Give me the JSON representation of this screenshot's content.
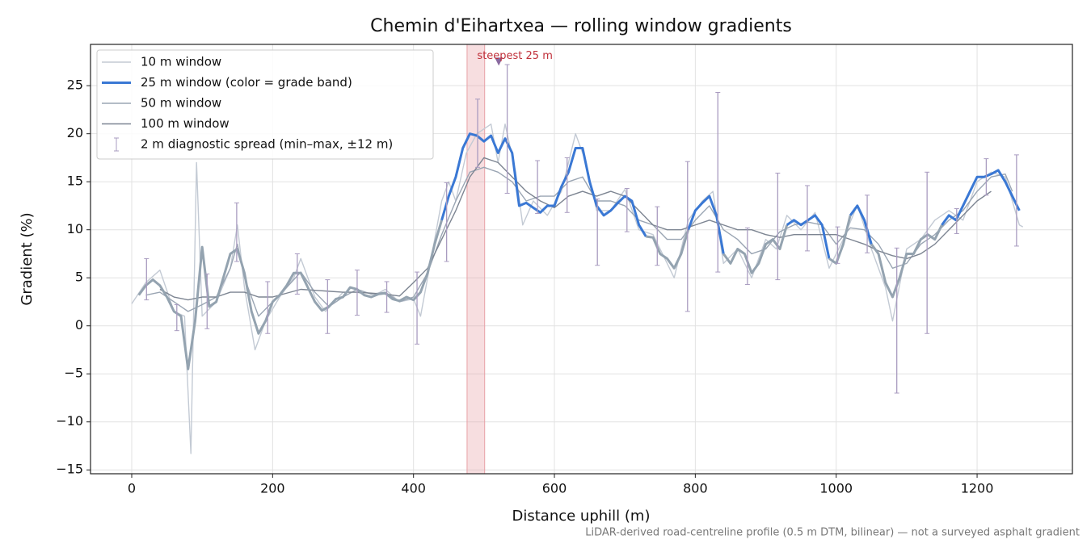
{
  "chart_data": {
    "type": "line",
    "title": "Chemin d'Eihartxea — rolling window gradients",
    "x_label": "Distance uphill (m)",
    "y_label": "Gradient (%)",
    "note": "LiDAR-derived road-centreline profile (0.5 m DTM, bilinear) — not a surveyed asphalt gradient",
    "xlim": [
      -58.5,
      1335.3
    ],
    "ylim": [
      -15.4,
      29.3
    ],
    "xticks": [
      0,
      200,
      400,
      600,
      800,
      1000,
      1200
    ],
    "yticks": [
      {
        "value": -15,
        "label": "−15"
      },
      {
        "value": -10,
        "label": "−10"
      },
      {
        "value": -5,
        "label": "−5"
      },
      0,
      5,
      10,
      15,
      20,
      25
    ],
    "grid": true,
    "legend": "upper left",
    "highlight": {
      "x": [
        476,
        501
      ],
      "color": "#e8a0a6"
    },
    "annotation": {
      "text": "steepest 25 m",
      "x": 521,
      "y": 27.5,
      "color": "#c0303a"
    },
    "series": [
      {
        "name": "10 m window",
        "color": "#c3cad4",
        "x": [
          0,
          20,
          40,
          60,
          75,
          84,
          92,
          100,
          120,
          140,
          150,
          160,
          175,
          190,
          210,
          230,
          240,
          260,
          275,
          300,
          320,
          340,
          360,
          380,
          400,
          410,
          420,
          440,
          450,
          460,
          475,
          490,
          510,
          520,
          530,
          545,
          555,
          570,
          590,
          610,
          630,
          645,
          660,
          680,
          700,
          720,
          740,
          760,
          770,
          790,
          810,
          825,
          840,
          860,
          880,
          900,
          915,
          930,
          950,
          970,
          990,
          1010,
          1030,
          1050,
          1070,
          1080,
          1100,
          1120,
          1140,
          1160,
          1180,
          1200,
          1220,
          1240,
          1260,
          1265
        ],
        "values": [
          2.3,
          4.5,
          5.8,
          1.5,
          1.0,
          -13.3,
          17,
          1.0,
          2.5,
          6,
          10.5,
          4,
          -2.5,
          0.5,
          3,
          5,
          7,
          3,
          1.5,
          3.5,
          3.5,
          3,
          3.8,
          2.5,
          2.8,
          1,
          5,
          13,
          15,
          13,
          18,
          20,
          21,
          17,
          21,
          16,
          10.5,
          13,
          11.5,
          14,
          20,
          17,
          12,
          12,
          14.2,
          10,
          9.5,
          6.5,
          5,
          11,
          13,
          14,
          6.5,
          8,
          5,
          9,
          8,
          11.5,
          10,
          11.8,
          6,
          9,
          12.6,
          8,
          4,
          0.5,
          8,
          9,
          11,
          12,
          11,
          15,
          16,
          15.5,
          10.5,
          10.3
        ]
      },
      {
        "name": "25 m window (color = grade band)",
        "color": "#94a3b0",
        "band_color": "#3a78d4",
        "band_threshold": 10,
        "x": [
          10,
          20,
          30,
          40,
          50,
          60,
          70,
          80,
          90,
          100,
          110,
          120,
          130,
          140,
          150,
          160,
          170,
          180,
          190,
          200,
          210,
          220,
          230,
          240,
          250,
          260,
          270,
          280,
          290,
          300,
          310,
          320,
          330,
          340,
          350,
          360,
          370,
          380,
          390,
          400,
          410,
          420,
          430,
          440,
          450,
          460,
          470,
          480,
          490,
          500,
          510,
          520,
          530,
          540,
          550,
          560,
          570,
          580,
          590,
          600,
          610,
          620,
          630,
          640,
          650,
          660,
          670,
          680,
          690,
          700,
          710,
          720,
          730,
          740,
          750,
          760,
          770,
          780,
          790,
          800,
          810,
          820,
          830,
          840,
          850,
          860,
          870,
          880,
          890,
          900,
          910,
          920,
          930,
          940,
          950,
          960,
          970,
          980,
          990,
          1000,
          1010,
          1020,
          1030,
          1040,
          1050,
          1060,
          1070,
          1080,
          1090,
          1100,
          1110,
          1120,
          1130,
          1140,
          1150,
          1160,
          1170,
          1180,
          1190,
          1200,
          1210,
          1220,
          1230,
          1240,
          1250,
          1260
        ],
        "values": [
          3.2,
          4.2,
          4.8,
          4.2,
          3.0,
          1.5,
          1.0,
          -4.5,
          0.5,
          8.2,
          2.0,
          2.5,
          5.0,
          7.5,
          8.0,
          5.5,
          1.5,
          -0.8,
          0.5,
          2.5,
          3.2,
          4.2,
          5.5,
          5.5,
          4.0,
          2.5,
          1.6,
          2.0,
          2.8,
          3.0,
          4.0,
          3.8,
          3.2,
          3.0,
          3.3,
          3.4,
          2.8,
          2.6,
          3.0,
          2.7,
          3.5,
          5.5,
          8.5,
          11.0,
          13.5,
          15.5,
          18.5,
          20.0,
          19.8,
          19.2,
          19.8,
          18.0,
          19.5,
          18.0,
          12.5,
          12.8,
          12.3,
          11.8,
          12.5,
          12.5,
          14.5,
          16.0,
          18.5,
          18.5,
          15.0,
          12.5,
          11.5,
          12.0,
          12.8,
          13.5,
          13.0,
          10.5,
          9.3,
          9.2,
          7.5,
          7.0,
          6.0,
          7.5,
          10.0,
          12.0,
          12.8,
          13.5,
          11.5,
          7.5,
          6.5,
          8.0,
          7.5,
          5.5,
          6.5,
          8.5,
          9.0,
          8.0,
          10.5,
          11.0,
          10.5,
          11.0,
          11.5,
          10.5,
          7.0,
          6.5,
          8.5,
          11.5,
          12.5,
          11.0,
          8.5,
          7.5,
          4.5,
          3.0,
          5.0,
          7.5,
          7.5,
          9.0,
          9.5,
          9.0,
          10.5,
          11.5,
          11.0,
          12.5,
          14.0,
          15.5,
          15.5,
          15.8,
          16.2,
          15.0,
          13.5,
          12.0
        ]
      },
      {
        "name": "50 m window",
        "color": "#9aa5b3",
        "x": [
          20,
          40,
          60,
          80,
          100,
          120,
          140,
          150,
          160,
          180,
          200,
          220,
          240,
          260,
          280,
          300,
          320,
          340,
          360,
          380,
          400,
          420,
          440,
          460,
          480,
          500,
          520,
          540,
          560,
          580,
          600,
          620,
          640,
          660,
          680,
          700,
          720,
          740,
          760,
          780,
          800,
          820,
          840,
          860,
          880,
          900,
          920,
          940,
          960,
          980,
          1000,
          1020,
          1040,
          1060,
          1080,
          1100,
          1120,
          1140,
          1160,
          1180,
          1200,
          1220,
          1240,
          1250
        ],
        "values": [
          3.2,
          3.5,
          2.5,
          1.5,
          2.2,
          3,
          6,
          8.5,
          5,
          1,
          2.5,
          4,
          5.6,
          3.5,
          2.0,
          3,
          3.8,
          3.3,
          3.5,
          2.5,
          3,
          5.5,
          9.5,
          13,
          16,
          16.5,
          16,
          15,
          13,
          13.5,
          13.5,
          15,
          15.5,
          13,
          13,
          12.5,
          11,
          10.5,
          9,
          9,
          11,
          12.5,
          10,
          9,
          7.5,
          8,
          9.8,
          10.5,
          10.8,
          10.5,
          8.5,
          10.2,
          10,
          8.5,
          6,
          6.5,
          8.5,
          9.5,
          11,
          12,
          14,
          15.5,
          15.8,
          14
        ]
      },
      {
        "name": "100 m window",
        "color": "#7d8592",
        "x": [
          40,
          60,
          80,
          100,
          120,
          140,
          160,
          180,
          200,
          220,
          240,
          260,
          280,
          300,
          320,
          340,
          360,
          380,
          400,
          420,
          440,
          460,
          480,
          500,
          520,
          540,
          560,
          580,
          600,
          620,
          640,
          660,
          680,
          700,
          720,
          740,
          760,
          780,
          800,
          820,
          840,
          860,
          880,
          900,
          920,
          940,
          960,
          980,
          1000,
          1020,
          1040,
          1060,
          1080,
          1100,
          1120,
          1140,
          1160,
          1180,
          1200,
          1220
        ],
        "values": [
          3.8,
          3,
          2.7,
          3,
          3,
          3.5,
          3.5,
          3,
          3,
          3.4,
          3.8,
          3.7,
          3.6,
          3.5,
          3.5,
          3.4,
          3.3,
          3.1,
          4.5,
          6,
          9,
          12,
          15.5,
          17.5,
          17,
          15.5,
          14,
          13,
          12.3,
          13.5,
          14,
          13.5,
          14,
          13.5,
          12,
          10.5,
          10,
          10,
          10.5,
          11,
          10.5,
          10,
          10,
          9.5,
          9.2,
          9.5,
          9.5,
          9.5,
          9.5,
          9,
          8.5,
          7.8,
          7.3,
          7,
          7.5,
          8.5,
          10,
          11.5,
          13,
          14
        ]
      }
    ],
    "errorbars": {
      "name": "2 m diagnostic spread (min–max, ±12 m)",
      "color": "#a99cc0",
      "x": [
        21,
        64,
        107,
        149,
        193,
        235,
        278,
        320,
        362,
        405,
        447,
        491,
        533,
        576,
        618,
        661,
        703,
        746,
        789,
        832,
        874,
        917,
        959,
        1002,
        1044,
        1086,
        1129,
        1171,
        1213,
        1256
      ],
      "low": [
        2.7,
        -0.5,
        -0.3,
        6.7,
        -0.8,
        3.3,
        -0.8,
        1.1,
        1.4,
        -1.9,
        6.7,
        16.5,
        13.8,
        11.7,
        11.8,
        6.3,
        9.8,
        6.3,
        1.5,
        5.6,
        4.3,
        4.8,
        7.8,
        6.5,
        7.6,
        -7,
        -0.8,
        9.6,
        13.6,
        8.3
      ],
      "high": [
        7,
        2.2,
        5.4,
        12.8,
        4.6,
        7.5,
        4.8,
        5.8,
        4.6,
        5.6,
        14.9,
        23.6,
        27.2,
        17.2,
        17.5,
        13.2,
        14.3,
        12.4,
        17.1,
        24.3,
        10.2,
        15.9,
        14.6,
        10.3,
        13.6,
        8.1,
        16,
        12.2,
        17.4,
        17.8
      ]
    }
  }
}
